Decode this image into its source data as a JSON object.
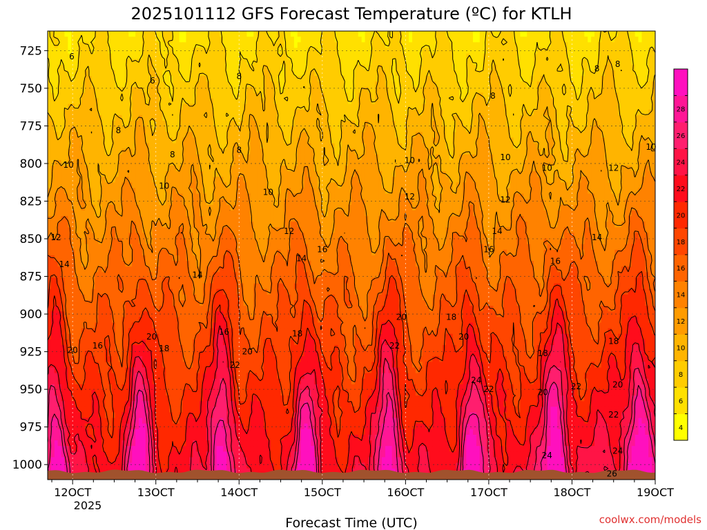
{
  "chart_data": {
    "type": "heatmap",
    "title": "2025101112 GFS Forecast Temperature (ºC) for KTLH",
    "xlabel": "Forecast Time (UTC)",
    "ylabel": "",
    "x_tick_labels": [
      "12OCT",
      "13OCT",
      "14OCT",
      "15OCT",
      "16OCT",
      "17OCT",
      "18OCT",
      "19OCT"
    ],
    "x_tick_sublabel": "2025",
    "x_range_days": [
      11.7,
      19.0
    ],
    "x_tick_values_days": [
      12,
      13,
      14,
      15,
      16,
      17,
      18,
      19
    ],
    "y_tick_labels": [
      "725",
      "750",
      "775",
      "800",
      "825",
      "850",
      "875",
      "900",
      "925",
      "950",
      "975",
      "1000"
    ],
    "y_tick_values_hpa": [
      725,
      750,
      775,
      800,
      825,
      850,
      875,
      900,
      925,
      950,
      975,
      1000
    ],
    "y_range_hpa": [
      712,
      1010
    ],
    "y_inverted": true,
    "colorbar": {
      "levels": [
        2,
        4,
        6,
        8,
        10,
        12,
        14,
        16,
        18,
        20,
        22,
        24,
        26,
        28,
        30
      ],
      "tick_labels": [
        "4",
        "6",
        "8",
        "10",
        "12",
        "14",
        "16",
        "18",
        "20",
        "22",
        "24",
        "26",
        "28"
      ],
      "colors": [
        "#ffff00",
        "#ffe000",
        "#ffcc00",
        "#ffb400",
        "#ff9b00",
        "#ff8200",
        "#ff6400",
        "#ff4600",
        "#ff2800",
        "#ff0c1c",
        "#ff1446",
        "#ff1e6e",
        "#ff1696",
        "#ff10be"
      ]
    },
    "contour_labels": [
      {
        "text": "6",
        "day": 11.99,
        "hpa": 729
      },
      {
        "text": "6",
        "day": 12.96,
        "hpa": 745
      },
      {
        "text": "8",
        "day": 14.0,
        "hpa": 742
      },
      {
        "text": "8",
        "day": 17.05,
        "hpa": 755
      },
      {
        "text": "8",
        "day": 18.3,
        "hpa": 737
      },
      {
        "text": "8",
        "day": 18.55,
        "hpa": 734
      },
      {
        "text": "8",
        "day": 12.55,
        "hpa": 778
      },
      {
        "text": "8",
        "day": 13.2,
        "hpa": 794
      },
      {
        "text": "8",
        "day": 14.0,
        "hpa": 791
      },
      {
        "text": "10",
        "day": 11.95,
        "hpa": 801
      },
      {
        "text": "10",
        "day": 13.1,
        "hpa": 815
      },
      {
        "text": "10",
        "day": 14.35,
        "hpa": 819
      },
      {
        "text": "10",
        "day": 16.05,
        "hpa": 798
      },
      {
        "text": "10",
        "day": 17.2,
        "hpa": 796
      },
      {
        "text": "10",
        "day": 17.7,
        "hpa": 803
      },
      {
        "text": "10",
        "day": 18.95,
        "hpa": 789
      },
      {
        "text": "12",
        "day": 11.8,
        "hpa": 849
      },
      {
        "text": "12",
        "day": 14.6,
        "hpa": 845
      },
      {
        "text": "12",
        "day": 16.05,
        "hpa": 822
      },
      {
        "text": "12",
        "day": 17.2,
        "hpa": 824
      },
      {
        "text": "12",
        "day": 18.5,
        "hpa": 803
      },
      {
        "text": "14",
        "day": 11.9,
        "hpa": 867
      },
      {
        "text": "14",
        "day": 13.5,
        "hpa": 874
      },
      {
        "text": "14",
        "day": 14.75,
        "hpa": 863
      },
      {
        "text": "14",
        "day": 17.1,
        "hpa": 845
      },
      {
        "text": "14",
        "day": 18.3,
        "hpa": 849
      },
      {
        "text": "16",
        "day": 12.3,
        "hpa": 921
      },
      {
        "text": "16",
        "day": 13.82,
        "hpa": 912
      },
      {
        "text": "16",
        "day": 15.0,
        "hpa": 857
      },
      {
        "text": "16",
        "day": 17.0,
        "hpa": 857
      },
      {
        "text": "16",
        "day": 17.8,
        "hpa": 865
      },
      {
        "text": "18",
        "day": 13.1,
        "hpa": 923
      },
      {
        "text": "18",
        "day": 14.7,
        "hpa": 913
      },
      {
        "text": "18",
        "day": 16.55,
        "hpa": 902
      },
      {
        "text": "18",
        "day": 17.65,
        "hpa": 926
      },
      {
        "text": "18",
        "day": 18.5,
        "hpa": 918
      },
      {
        "text": "20",
        "day": 12.0,
        "hpa": 924
      },
      {
        "text": "20",
        "day": 12.95,
        "hpa": 915
      },
      {
        "text": "20",
        "day": 14.1,
        "hpa": 925
      },
      {
        "text": "20",
        "day": 15.95,
        "hpa": 902
      },
      {
        "text": "20",
        "day": 16.7,
        "hpa": 915
      },
      {
        "text": "20",
        "day": 17.65,
        "hpa": 952
      },
      {
        "text": "20",
        "day": 18.55,
        "hpa": 947
      },
      {
        "text": "22",
        "day": 13.95,
        "hpa": 934
      },
      {
        "text": "22",
        "day": 15.87,
        "hpa": 921
      },
      {
        "text": "22",
        "day": 17.0,
        "hpa": 950
      },
      {
        "text": "22",
        "day": 18.05,
        "hpa": 948
      },
      {
        "text": "22",
        "day": 18.5,
        "hpa": 967
      },
      {
        "text": "24",
        "day": 16.85,
        "hpa": 944
      },
      {
        "text": "24",
        "day": 17.7,
        "hpa": 994
      },
      {
        "text": "24",
        "day": 18.55,
        "hpa": 991
      },
      {
        "text": "26",
        "day": 18.48,
        "hpa": 1006
      }
    ]
  },
  "credit": "coolwx.com/models"
}
